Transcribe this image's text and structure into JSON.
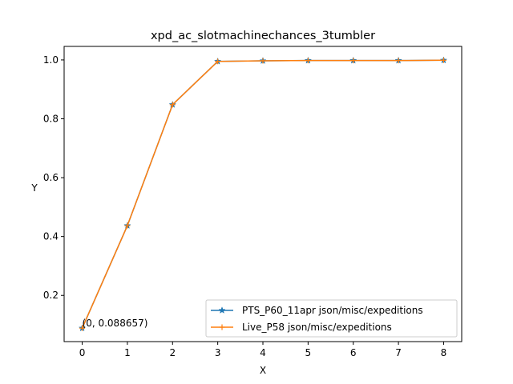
{
  "chart_data": {
    "type": "line",
    "title": "xpd_ac_slotmachinechances_3tumbler",
    "xlabel": "X",
    "ylabel": "Y",
    "xlim": [
      -0.4,
      8.4
    ],
    "ylim": [
      0.043,
      1.046
    ],
    "xticks": [
      0,
      1,
      2,
      3,
      4,
      5,
      6,
      7,
      8
    ],
    "yticks": [
      0.2,
      0.4,
      0.6,
      0.8,
      1.0
    ],
    "ytick_labels": [
      "0.2",
      "0.4",
      "0.6",
      "0.8",
      "1.0"
    ],
    "grid": false,
    "legend_position": "lower-right",
    "series": [
      {
        "name": "PTS_P60_11apr json/misc/expeditions",
        "color": "#1f77b4",
        "marker": "star",
        "x": [
          0,
          1,
          2,
          3,
          4,
          5,
          6,
          7,
          8
        ],
        "y": [
          0.088657,
          0.437,
          0.848,
          0.995,
          0.997,
          0.998,
          0.998,
          0.998,
          0.999
        ]
      },
      {
        "name": "Live_P58 json/misc/expeditions",
        "color": "#ff7f0e",
        "marker": "plus",
        "x": [
          0,
          1,
          2,
          3,
          4,
          5,
          6,
          7,
          8
        ],
        "y": [
          0.088657,
          0.437,
          0.848,
          0.995,
          0.997,
          0.998,
          0.998,
          0.998,
          0.999
        ]
      }
    ],
    "annotations": [
      {
        "text": "(0, 0.088657)",
        "x": 0,
        "y": 0.088657
      }
    ]
  }
}
